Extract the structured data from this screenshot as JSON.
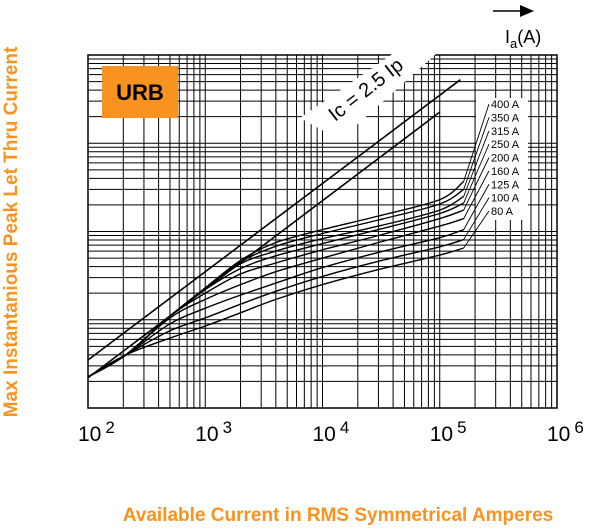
{
  "chart_data": {
    "type": "line",
    "title": "",
    "xlabel": "Available Current in RMS Symmetrical Amperes",
    "ylabel": "Max Instantanious Peak Let Thru Current",
    "x_scale": "log",
    "y_scale": "log",
    "xlim": [
      100,
      1000000
    ],
    "ylim": [
      100,
      1000000
    ],
    "grid": true,
    "x_tick_labels": [
      {
        "base": "10",
        "exp": "2"
      },
      {
        "base": "10",
        "exp": "3"
      },
      {
        "base": "10",
        "exp": "4"
      },
      {
        "base": "10",
        "exp": "5"
      },
      {
        "base": "10",
        "exp": "6"
      }
    ],
    "badge": "URB",
    "reference_label": "Ic = 2.5 Ip",
    "current_axis_label": {
      "base": "I",
      "sub": "a",
      "rest": "(A)"
    },
    "reference_lines": [
      {
        "name": "Ic = 2.5 Ip",
        "x": [
          100,
          150000
        ],
        "y": [
          350,
          525000
        ]
      },
      {
        "name": "",
        "x": [
          100,
          100000
        ],
        "y": [
          220,
          225000
        ]
      }
    ],
    "series": [
      {
        "name": "400 A",
        "x": [
          100,
          210,
          500,
          1000,
          2000,
          4000,
          10000,
          30000,
          100000,
          160000
        ],
        "y": [
          225,
          400,
          1100,
          2300,
          4700,
          7500,
          10500,
          15000,
          23000,
          37000
        ]
      },
      {
        "name": "350 A",
        "x": [
          100,
          210,
          500,
          1000,
          2000,
          4000,
          10000,
          30000,
          100000,
          160000
        ],
        "y": [
          225,
          400,
          1100,
          2250,
          4500,
          6800,
          9500,
          13500,
          20500,
          30000
        ]
      },
      {
        "name": "315 A",
        "x": [
          100,
          210,
          500,
          1000,
          2000,
          4000,
          10000,
          30000,
          100000,
          160000
        ],
        "y": [
          225,
          400,
          1100,
          2250,
          4300,
          6000,
          8300,
          11500,
          17500,
          25000
        ]
      },
      {
        "name": "250 A",
        "x": [
          100,
          210,
          500,
          1000,
          2000,
          4000,
          10000,
          30000,
          100000,
          160000
        ],
        "y": [
          225,
          400,
          1100,
          2200,
          3800,
          5300,
          7300,
          10500,
          16000,
          21000
        ]
      },
      {
        "name": "200 A",
        "x": [
          100,
          210,
          500,
          1000,
          2000,
          4000,
          10000,
          30000,
          100000,
          160000
        ],
        "y": [
          225,
          400,
          1100,
          2000,
          3300,
          4400,
          6200,
          9000,
          14000,
          17500
        ]
      },
      {
        "name": "160 A",
        "x": [
          100,
          210,
          500,
          1000,
          2000,
          4000,
          10000,
          30000,
          100000,
          160000
        ],
        "y": [
          225,
          400,
          1050,
          1700,
          2500,
          3500,
          5000,
          7500,
          11500,
          14000
        ]
      },
      {
        "name": "125 A",
        "x": [
          100,
          210,
          500,
          1000,
          2000,
          4000,
          10000,
          30000,
          100000,
          160000
        ],
        "y": [
          225,
          400,
          900,
          1350,
          1900,
          2600,
          3900,
          5800,
          8500,
          10500
        ]
      },
      {
        "name": "100 A",
        "x": [
          100,
          210,
          500,
          1000,
          2000,
          4000,
          10000,
          30000,
          100000,
          160000
        ],
        "y": [
          225,
          400,
          750,
          1050,
          1500,
          2100,
          3100,
          4600,
          6700,
          8100
        ]
      },
      {
        "name": "80 A",
        "x": [
          100,
          210,
          500,
          1000,
          2000,
          4000,
          10000,
          30000,
          100000,
          160000
        ],
        "y": [
          225,
          400,
          620,
          850,
          1200,
          1700,
          2500,
          3700,
          5400,
          6500
        ]
      }
    ]
  },
  "colors": {
    "accent_orange": "#f7931e",
    "badge_fill": "#f7931e",
    "line": "#000000",
    "background": "#ffffff"
  },
  "icons": [
    "arrow-right-icon"
  ]
}
